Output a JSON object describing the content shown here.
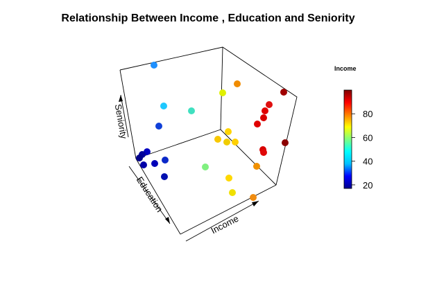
{
  "chart_data": {
    "type": "scatter",
    "title": "Relationship Between Income , Education and Seniority",
    "axes": {
      "x": "Income",
      "y": "Education",
      "z": "Seniority"
    },
    "colorbar": {
      "title": "Income",
      "ticks": [
        "20",
        "40",
        "60",
        "80"
      ],
      "range": [
        17,
        100
      ],
      "palette": [
        "#00008B",
        "#0000FF",
        "#00BFFF",
        "#00FFFF",
        "#7FFF7F",
        "#FFFF00",
        "#FF7F00",
        "#FF0000",
        "#7F0000"
      ]
    },
    "points": [
      {
        "income": 40,
        "seniority": "high",
        "color": "#1e90ff"
      },
      {
        "income": 48,
        "seniority": "mid-high",
        "color": "#1ec8ff"
      },
      {
        "income": 55,
        "seniority": "mid",
        "color": "#40e0c0"
      },
      {
        "income": 22,
        "seniority": "mid",
        "color": "#1040d8"
      },
      {
        "income": 20,
        "seniority": "low",
        "color": "#0000c0"
      },
      {
        "income": 18,
        "seniority": "low",
        "color": "#00009c"
      },
      {
        "income": 17,
        "seniority": "low",
        "color": "#00008b"
      },
      {
        "income": 19,
        "seniority": "low",
        "color": "#0000a8"
      },
      {
        "income": 20,
        "seniority": "low",
        "color": "#0000b8"
      },
      {
        "income": 22,
        "seniority": "low",
        "color": "#0a28c8"
      },
      {
        "income": 20,
        "seniority": "low",
        "color": "#0010b0"
      },
      {
        "income": 60,
        "seniority": "low",
        "color": "#80f080"
      },
      {
        "income": 70,
        "seniority": "mid",
        "color": "#e0f000"
      },
      {
        "income": 74,
        "seniority": "mid",
        "color": "#ffd400"
      },
      {
        "income": 76,
        "seniority": "mid",
        "color": "#f8c800"
      },
      {
        "income": 75,
        "seniority": "mid",
        "color": "#f0cc00"
      },
      {
        "income": 74,
        "seniority": "low",
        "color": "#ffd800"
      },
      {
        "income": 72,
        "seniority": "low",
        "color": "#f0e000"
      },
      {
        "income": 79,
        "seniority": "high",
        "color": "#ffd000"
      },
      {
        "income": 82,
        "seniority": "high",
        "color": "#f08c00"
      },
      {
        "income": 84,
        "seniority": "low",
        "color": "#f09000"
      },
      {
        "income": 83,
        "seniority": "low",
        "color": "#f08c10"
      },
      {
        "income": 92,
        "seniority": "mid-high",
        "color": "#e01010"
      },
      {
        "income": 93,
        "seniority": "mid-high",
        "color": "#e00000"
      },
      {
        "income": 94,
        "seniority": "mid-high",
        "color": "#d80000"
      },
      {
        "income": 92,
        "seniority": "mid",
        "color": "#e00000"
      },
      {
        "income": 92,
        "seniority": "mid",
        "color": "#d80000"
      },
      {
        "income": 93,
        "seniority": "mid",
        "color": "#e00808"
      },
      {
        "income": 98,
        "seniority": "high",
        "color": "#a00000"
      },
      {
        "income": 99,
        "seniority": "mid",
        "color": "#8b0000"
      }
    ]
  }
}
